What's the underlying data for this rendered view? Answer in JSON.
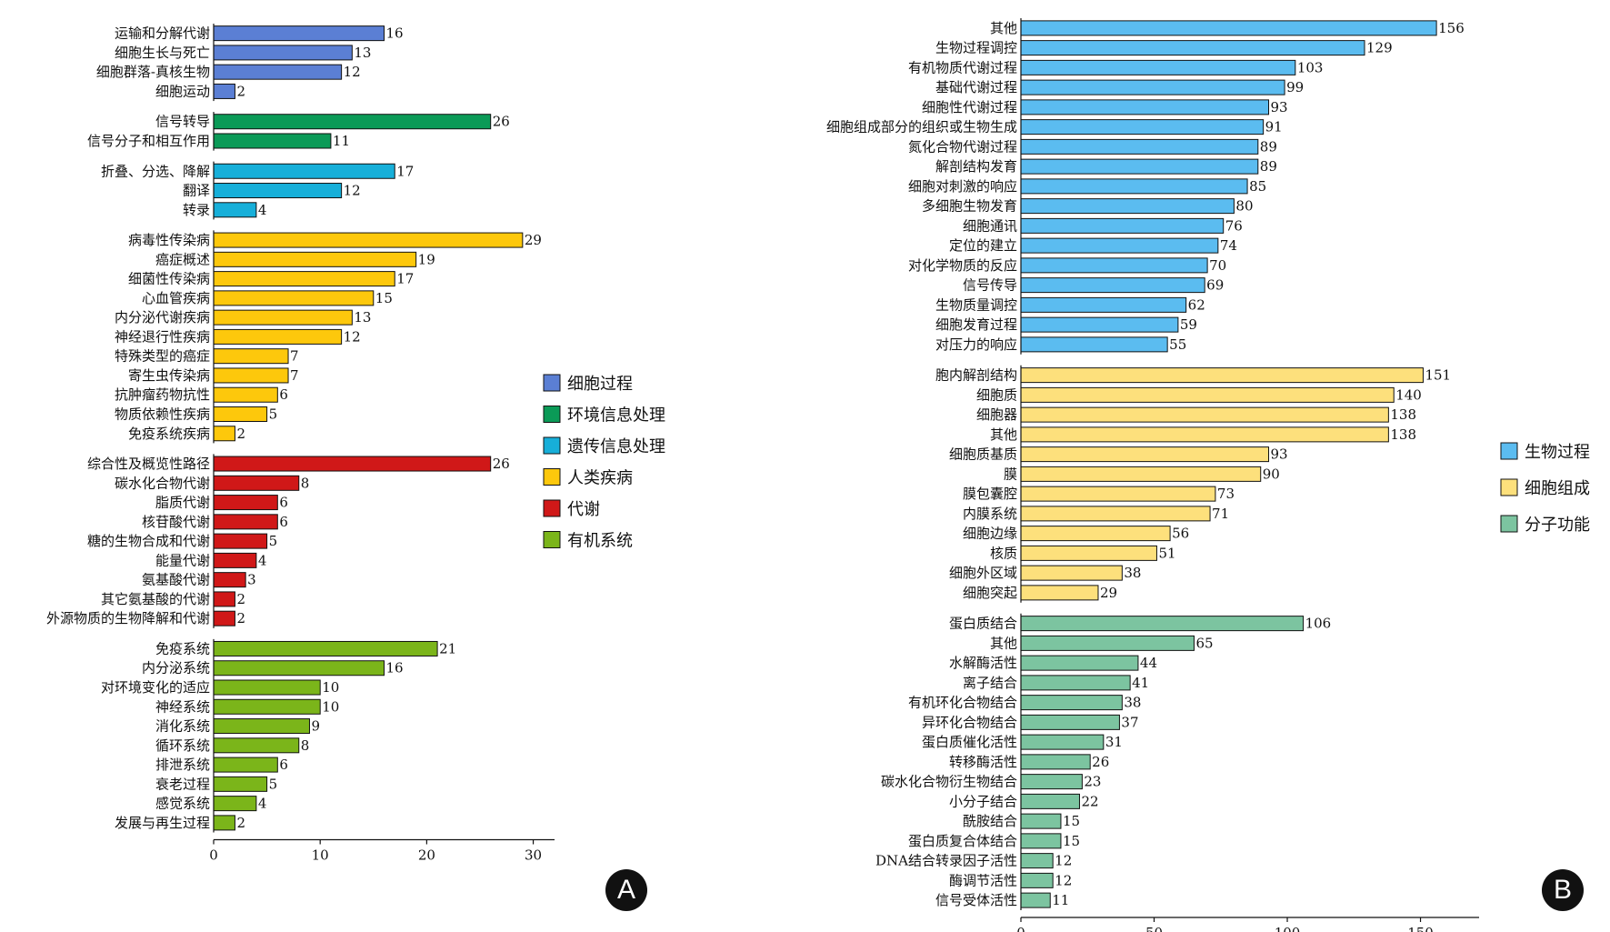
{
  "chart_data": [
    {
      "panel": "A",
      "type": "bar",
      "orientation": "horizontal",
      "xlim": [
        0,
        32
      ],
      "xticks": [
        0,
        10,
        20,
        30
      ],
      "legend_position": "right",
      "groups": [
        {
          "name": "细胞过程",
          "color": "#5b7fd4",
          "categories": [
            "运输和分解代谢",
            "细胞生长与死亡",
            "细胞群落-真核生物",
            "细胞运动"
          ],
          "values": [
            16,
            13,
            12,
            2
          ]
        },
        {
          "name": "环境信息处理",
          "color": "#0b9a57",
          "categories": [
            "信号转导",
            "信号分子和相互作用"
          ],
          "values": [
            26,
            11
          ]
        },
        {
          "name": "遗传信息处理",
          "color": "#17afd9",
          "categories": [
            "折叠、分选、降解",
            "翻译",
            "转录"
          ],
          "values": [
            17,
            12,
            4
          ]
        },
        {
          "name": "人类疾病",
          "color": "#fdc80c",
          "categories": [
            "病毒性传染病",
            "癌症概述",
            "细菌性传染病",
            "心血管疾病",
            "内分泌代谢疾病",
            "神经退行性疾病",
            "特殊类型的癌症",
            "寄生虫传染病",
            "抗肿瘤药物抗性",
            "物质依赖性疾病",
            "免疫系统疾病"
          ],
          "values": [
            29,
            19,
            17,
            15,
            13,
            12,
            7,
            7,
            6,
            5,
            2
          ]
        },
        {
          "name": "代谢",
          "color": "#d01818",
          "categories": [
            "综合性及概览性路径",
            "碳水化合物代谢",
            "脂质代谢",
            "核苷酸代谢",
            "糖的生物合成和代谢",
            "能量代谢",
            "氨基酸代谢",
            "其它氨基酸的代谢",
            "外源物质的生物降解和代谢"
          ],
          "values": [
            26,
            8,
            6,
            6,
            5,
            4,
            3,
            2,
            2
          ]
        },
        {
          "name": "有机系统",
          "color": "#7bb51a",
          "categories": [
            "免疫系统",
            "内分泌系统",
            "对环境变化的适应",
            "神经系统",
            "消化系统",
            "循环系统",
            "排泄系统",
            "衰老过程",
            "感觉系统",
            "发展与再生过程"
          ],
          "values": [
            21,
            16,
            10,
            10,
            9,
            8,
            6,
            5,
            4,
            2
          ]
        }
      ]
    },
    {
      "panel": "B",
      "type": "bar",
      "orientation": "horizontal",
      "xlim": [
        0,
        172
      ],
      "xticks": [
        0,
        50,
        100,
        150
      ],
      "legend_position": "right",
      "groups": [
        {
          "name": "生物过程",
          "color": "#5bbcf0",
          "categories": [
            "其他",
            "生物过程调控",
            "有机物质代谢过程",
            "基础代谢过程",
            "细胞性代谢过程",
            "细胞组成部分的组织或生物生成",
            "氮化合物代谢过程",
            "解剖结构发育",
            "细胞对刺激的响应",
            "多细胞生物发育",
            "细胞通讯",
            "定位的建立",
            "对化学物质的反应",
            "信号传导",
            "生物质量调控",
            "细胞发育过程",
            "对压力的响应"
          ],
          "values": [
            156,
            129,
            103,
            99,
            93,
            91,
            89,
            89,
            85,
            80,
            76,
            74,
            70,
            69,
            62,
            59,
            55
          ]
        },
        {
          "name": "细胞组成",
          "color": "#fde07c",
          "categories": [
            "胞内解剖结构",
            "细胞质",
            "细胞器",
            "其他",
            "细胞质基质",
            "膜",
            "膜包囊腔",
            "内膜系统",
            "细胞边缘",
            "核质",
            "细胞外区域",
            "细胞突起"
          ],
          "values": [
            151,
            140,
            138,
            138,
            93,
            90,
            73,
            71,
            56,
            51,
            38,
            29
          ]
        },
        {
          "name": "分子功能",
          "color": "#7cc4a0",
          "categories": [
            "蛋白质结合",
            "其他",
            "水解酶活性",
            "离子结合",
            "有机环化合物结合",
            "异环化合物结合",
            "蛋白质催化活性",
            "转移酶活性",
            "碳水化合物衍生物结合",
            "小分子结合",
            "酰胺结合",
            "蛋白质复合体结合",
            "DNA结合转录因子活性",
            "酶调节活性",
            "信号受体活性"
          ],
          "values": [
            106,
            65,
            44,
            41,
            38,
            37,
            31,
            26,
            23,
            22,
            15,
            15,
            12,
            12,
            11
          ]
        }
      ]
    }
  ],
  "panel_labels": {
    "a": "A",
    "b": "B"
  }
}
